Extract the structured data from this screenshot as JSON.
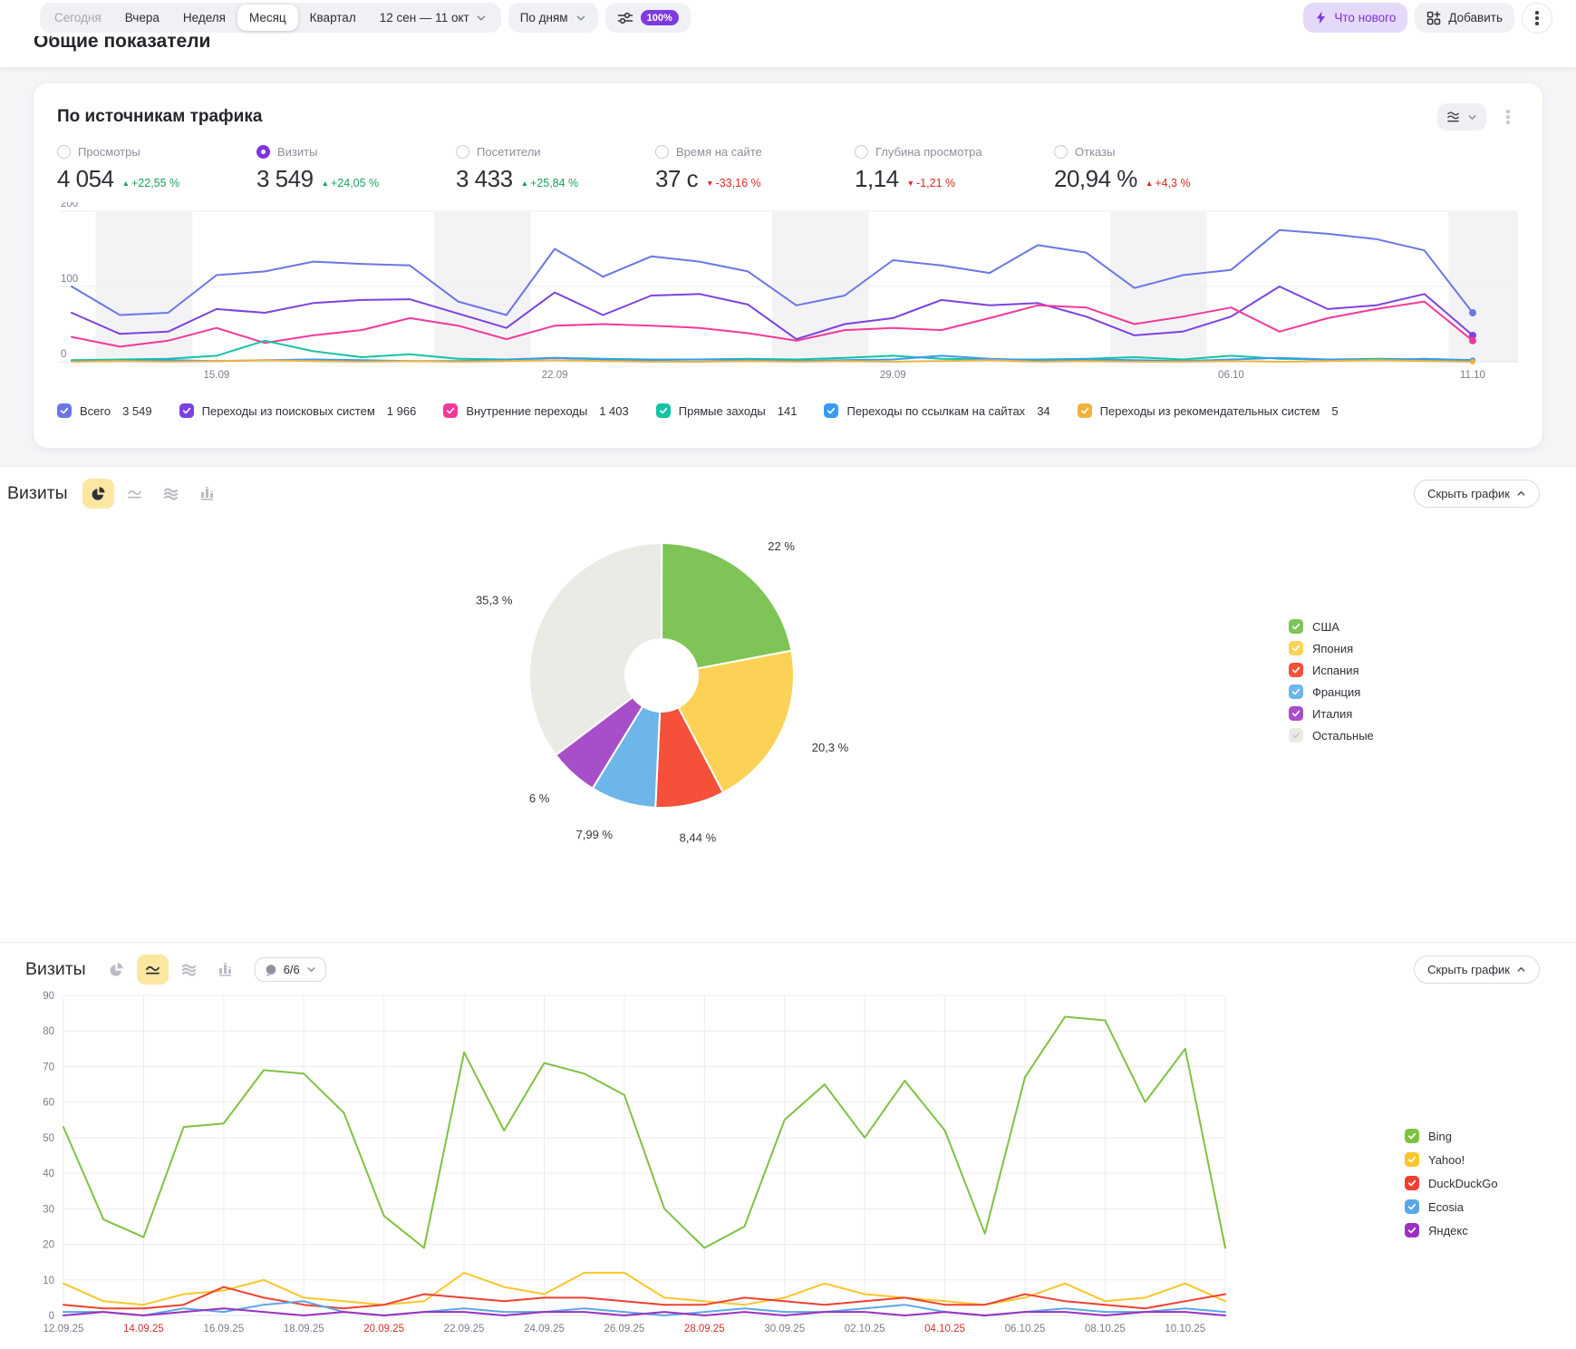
{
  "topbar": {
    "tabs": [
      "Сегодня",
      "Вчера",
      "Неделя",
      "Месяц",
      "Квартал"
    ],
    "active_tab": "Месяц",
    "date_range": "12 сен — 11 окт",
    "granularity": "По дням",
    "sampling": "100%",
    "whats_new_label": "Что нового",
    "add_label": "Добавить"
  },
  "page": {
    "title": "Общие показатели"
  },
  "traffic_card": {
    "title": "По источникам трафика",
    "metrics": [
      {
        "label": "Просмотры",
        "value": "4 054",
        "dir": "up",
        "delta": "+22,55 %",
        "color": "green",
        "selected": false
      },
      {
        "label": "Визиты",
        "value": "3 549",
        "dir": "up",
        "delta": "+24,05 %",
        "color": "green",
        "selected": true
      },
      {
        "label": "Посетители",
        "value": "3 433",
        "dir": "up",
        "delta": "+25,84 %",
        "color": "green",
        "selected": false
      },
      {
        "label": "Время на сайте",
        "value": "37 с",
        "dir": "down",
        "delta": "-33,16 %",
        "color": "red",
        "selected": false
      },
      {
        "label": "Глубина просмотра",
        "value": "1,14",
        "dir": "down",
        "delta": "-1,21 %",
        "color": "red",
        "selected": false
      },
      {
        "label": "Отказы",
        "value": "20,94 %",
        "dir": "up",
        "delta": "+4,3 %",
        "color": "red",
        "selected": false
      }
    ]
  },
  "pie_section": {
    "title": "Визиты",
    "hide_chart_label": "Скрыть график"
  },
  "line_section": {
    "title": "Визиты",
    "counter": "6/6",
    "hide_chart_label": "Скрыть график"
  },
  "chart_data": [
    {
      "type": "line",
      "title": "По источникам трафика",
      "ylim": [
        0,
        200
      ],
      "yticks": [
        0,
        100,
        200
      ],
      "days": 30,
      "grid": "horizontal",
      "legend_position": "bottom",
      "xticks": [
        {
          "i": 3,
          "label": "15.09"
        },
        {
          "i": 10,
          "label": "22.09"
        },
        {
          "i": 17,
          "label": "29.09"
        },
        {
          "i": 24,
          "label": "06.10"
        },
        {
          "i": 29,
          "label": "11.10"
        }
      ],
      "weekend_bands": [
        [
          1,
          2
        ],
        [
          8,
          9
        ],
        [
          15,
          16
        ],
        [
          22,
          23
        ],
        [
          29,
          29
        ]
      ],
      "series": [
        {
          "name": "Всего",
          "total": "3 549",
          "color": "#6b76e6",
          "values": [
            100,
            62,
            65,
            115,
            120,
            133,
            130,
            128,
            80,
            62,
            150,
            113,
            140,
            133,
            120,
            75,
            88,
            135,
            128,
            118,
            155,
            145,
            98,
            115,
            122,
            175,
            170,
            163,
            148,
            65
          ]
        },
        {
          "name": "Переходы из поисковых систем",
          "total": "1 966",
          "color": "#7b42e0",
          "values": [
            65,
            37,
            40,
            70,
            65,
            78,
            82,
            83,
            64,
            45,
            92,
            62,
            88,
            90,
            76,
            30,
            50,
            58,
            82,
            75,
            78,
            60,
            35,
            40,
            60,
            100,
            70,
            75,
            90,
            35
          ]
        },
        {
          "name": "Внутренние переходы",
          "total": "1 403",
          "color": "#f4399b",
          "values": [
            33,
            20,
            28,
            45,
            25,
            35,
            42,
            58,
            48,
            30,
            48,
            50,
            48,
            45,
            38,
            28,
            42,
            45,
            42,
            58,
            75,
            72,
            50,
            60,
            72,
            40,
            58,
            70,
            80,
            28
          ]
        },
        {
          "name": "Прямые заходы",
          "total": "141",
          "color": "#16c2a4",
          "values": [
            2,
            3,
            4,
            8,
            28,
            14,
            6,
            10,
            4,
            3,
            5,
            4,
            3,
            3,
            4,
            3,
            5,
            8,
            4,
            3,
            3,
            4,
            6,
            3,
            8,
            4,
            3,
            4,
            3,
            2
          ]
        },
        {
          "name": "Переходы по ссылкам на сайтах",
          "total": "34",
          "color": "#399bf2",
          "values": [
            1,
            1,
            2,
            1,
            2,
            3,
            2,
            1,
            1,
            2,
            5,
            3,
            2,
            3,
            2,
            1,
            2,
            3,
            8,
            4,
            2,
            3,
            2,
            1,
            3,
            5,
            3,
            2,
            4,
            2
          ]
        },
        {
          "name": "Переходы из рекомендательных систем",
          "total": "5",
          "color": "#f2b13c",
          "values": [
            0,
            1,
            0,
            1,
            2,
            1,
            0,
            1,
            0,
            1,
            2,
            1,
            0,
            0,
            1,
            0,
            1,
            0,
            1,
            2,
            0,
            1,
            0,
            0,
            1,
            0,
            1,
            2,
            1,
            0
          ]
        }
      ]
    },
    {
      "type": "pie",
      "donut": true,
      "title": "Визиты",
      "labels": [
        "США",
        "Япония",
        "Испания",
        "Франция",
        "Италия",
        "Остальные"
      ],
      "values": [
        22,
        20.3,
        8.44,
        7.99,
        6,
        35.3
      ],
      "display": [
        "22 %",
        "20,3 %",
        "8,44 %",
        "7,99 %",
        "6 %",
        "35,3 %"
      ],
      "colors": [
        "#7ec457",
        "#fbd255",
        "#f4503a",
        "#6cb6ea",
        "#a74fc9",
        "#ebebe6"
      ],
      "legend_position": "right"
    },
    {
      "type": "line",
      "title": "Визиты",
      "ylim": [
        0,
        90
      ],
      "yticks": [
        0,
        10,
        20,
        30,
        40,
        50,
        60,
        70,
        80,
        90
      ],
      "days": 30,
      "grid": "both",
      "legend_position": "right",
      "xticks": [
        {
          "i": 0,
          "label": "12.09.25"
        },
        {
          "i": 2,
          "label": "14.09.25",
          "red": true
        },
        {
          "i": 4,
          "label": "16.09.25"
        },
        {
          "i": 6,
          "label": "18.09.25"
        },
        {
          "i": 8,
          "label": "20.09.25",
          "red": true
        },
        {
          "i": 10,
          "label": "22.09.25"
        },
        {
          "i": 12,
          "label": "24.09.25"
        },
        {
          "i": 14,
          "label": "26.09.25"
        },
        {
          "i": 16,
          "label": "28.09.25",
          "red": true
        },
        {
          "i": 18,
          "label": "30.09.25"
        },
        {
          "i": 20,
          "label": "02.10.25"
        },
        {
          "i": 22,
          "label": "04.10.25",
          "red": true
        },
        {
          "i": 24,
          "label": "06.10.25"
        },
        {
          "i": 26,
          "label": "08.10.25"
        },
        {
          "i": 28,
          "label": "10.10.25"
        }
      ],
      "series": [
        {
          "name": "Bing",
          "color": "#7fc241",
          "values": [
            53,
            27,
            22,
            53,
            54,
            69,
            68,
            57,
            28,
            19,
            74,
            52,
            71,
            68,
            62,
            30,
            19,
            25,
            55,
            65,
            50,
            66,
            52,
            23,
            67,
            84,
            83,
            60,
            75,
            19
          ]
        },
        {
          "name": "Yahoo!",
          "color": "#fbc62c",
          "values": [
            9,
            4,
            3,
            6,
            7,
            10,
            5,
            4,
            3,
            4,
            12,
            8,
            6,
            12,
            12,
            5,
            4,
            3,
            5,
            9,
            6,
            5,
            4,
            3,
            5,
            9,
            4,
            5,
            9,
            4
          ]
        },
        {
          "name": "DuckDuckGo",
          "color": "#ef4130",
          "values": [
            3,
            2,
            2,
            3,
            8,
            5,
            3,
            2,
            3,
            6,
            5,
            4,
            5,
            5,
            4,
            3,
            3,
            5,
            4,
            3,
            4,
            5,
            3,
            3,
            6,
            4,
            3,
            2,
            4,
            6
          ]
        },
        {
          "name": "Ecosia",
          "color": "#58a8e8",
          "values": [
            1,
            1,
            0,
            2,
            1,
            3,
            4,
            1,
            0,
            1,
            2,
            1,
            1,
            2,
            1,
            0,
            1,
            2,
            1,
            1,
            2,
            3,
            1,
            0,
            1,
            2,
            1,
            1,
            2,
            1
          ]
        },
        {
          "name": "Яндекс",
          "color": "#9b30c0",
          "values": [
            0,
            1,
            0,
            1,
            2,
            1,
            0,
            1,
            0,
            1,
            1,
            0,
            1,
            1,
            0,
            1,
            0,
            1,
            0,
            1,
            1,
            0,
            1,
            0,
            1,
            1,
            0,
            1,
            1,
            0
          ]
        }
      ]
    }
  ]
}
